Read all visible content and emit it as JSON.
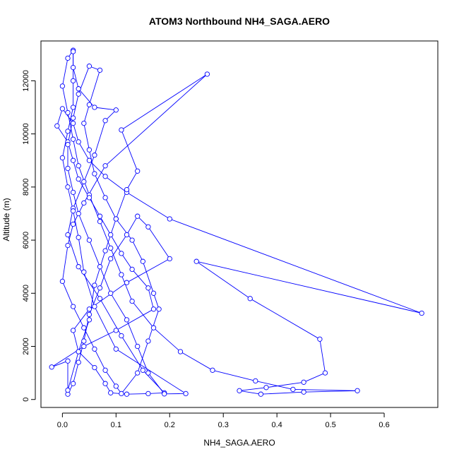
{
  "chart_data": {
    "type": "line",
    "title": "ATOM3 Northbound NH4_SAGA.AERO",
    "xlabel": "NH4_SAGA.AERO",
    "ylabel": "Altitude (m)",
    "xlim": [
      -0.04,
      0.7
    ],
    "ylim": [
      -300,
      13500
    ],
    "x_ticks": [
      0.0,
      0.1,
      0.2,
      0.3,
      0.4,
      0.5,
      0.6
    ],
    "x_tick_labels": [
      "0.0",
      "0.1",
      "0.2",
      "0.3",
      "0.4",
      "0.5",
      "0.6"
    ],
    "y_ticks": [
      0,
      2000,
      4000,
      6000,
      8000,
      10000,
      12000
    ],
    "y_tick_labels": [
      "0",
      "2000",
      "4000",
      "6000",
      "8000",
      "10000",
      "12000"
    ],
    "marker": "open-circle",
    "grid": false,
    "legend": "none",
    "color": "#0000ff",
    "series": [
      {
        "values": [
          [
            0.01,
            200
          ],
          [
            0.02,
            600
          ],
          [
            0.03,
            1400
          ],
          [
            0.04,
            2200
          ],
          [
            0.05,
            3200
          ],
          [
            0.07,
            4200
          ],
          [
            0.09,
            5300
          ],
          [
            0.12,
            6200
          ],
          [
            0.14,
            6900
          ],
          [
            0.16,
            6500
          ],
          [
            0.2,
            5300
          ],
          [
            0.12,
            4400
          ],
          [
            0.05,
            3400
          ],
          [
            0.02,
            2600
          ],
          [
            0.03,
            1800
          ],
          [
            0.06,
            1200
          ],
          [
            0.08,
            600
          ],
          [
            0.09,
            250
          ],
          [
            0.12,
            200
          ],
          [
            0.16,
            220
          ],
          [
            0.19,
            250
          ],
          [
            0.15,
            1100
          ],
          [
            0.11,
            2400
          ],
          [
            0.07,
            3800
          ],
          [
            0.03,
            5000
          ],
          [
            0.01,
            6200
          ],
          [
            0.02,
            7200
          ],
          [
            0.04,
            8200
          ],
          [
            0.06,
            9200
          ],
          [
            0.08,
            10500
          ],
          [
            0.1,
            10900
          ],
          [
            0.06,
            11000
          ],
          [
            0.03,
            11700
          ],
          [
            0.02,
            12500
          ],
          [
            0.02,
            13150
          ],
          [
            0.01,
            12850
          ],
          [
            0.0,
            11800
          ],
          [
            0.01,
            10800
          ],
          [
            0.02,
            9800
          ],
          [
            0.03,
            8800
          ],
          [
            0.05,
            7700
          ],
          [
            0.07,
            6700
          ],
          [
            0.09,
            5700
          ],
          [
            0.11,
            4700
          ],
          [
            0.13,
            3700
          ],
          [
            0.17,
            2700
          ],
          [
            0.22,
            1800
          ],
          [
            0.28,
            1100
          ],
          [
            0.36,
            700
          ],
          [
            0.43,
            380
          ],
          [
            0.55,
            330
          ],
          [
            0.45,
            280
          ],
          [
            0.37,
            200
          ],
          [
            0.33,
            330
          ],
          [
            0.38,
            450
          ],
          [
            0.45,
            650
          ],
          [
            0.49,
            1000
          ],
          [
            0.48,
            2270
          ],
          [
            0.35,
            3800
          ],
          [
            0.25,
            5200
          ],
          [
            0.67,
            3250
          ],
          [
            0.2,
            6800
          ],
          [
            0.12,
            7800
          ],
          [
            0.08,
            8400
          ],
          [
            0.05,
            9000
          ],
          [
            0.03,
            9700
          ],
          [
            0.02,
            10400
          ],
          [
            0.0,
            10950
          ],
          [
            -0.01,
            10300
          ],
          [
            0.01,
            9700
          ],
          [
            0.02,
            9000
          ],
          [
            0.03,
            8300
          ],
          [
            0.05,
            7600
          ],
          [
            0.07,
            6900
          ],
          [
            0.09,
            6200
          ],
          [
            0.11,
            5500
          ],
          [
            0.13,
            4900
          ],
          [
            0.16,
            4200
          ],
          [
            0.17,
            3400
          ],
          [
            0.1,
            2600
          ],
          [
            0.04,
            2000
          ],
          [
            -0.02,
            1220
          ],
          [
            0.01,
            1450
          ],
          [
            0.01,
            350
          ],
          [
            0.03,
            1800
          ],
          [
            0.05,
            3000
          ],
          [
            0.06,
            4300
          ],
          [
            0.08,
            5600
          ],
          [
            0.1,
            6800
          ],
          [
            0.12,
            7900
          ],
          [
            0.14,
            8600
          ],
          [
            0.11,
            10150
          ],
          [
            0.27,
            12250
          ],
          [
            0.08,
            8800
          ],
          [
            0.04,
            7400
          ],
          [
            0.02,
            6600
          ],
          [
            0.01,
            5800
          ],
          [
            0.0,
            4450
          ],
          [
            0.02,
            3500
          ],
          [
            0.04,
            2700
          ],
          [
            0.06,
            1900
          ],
          [
            0.08,
            1100
          ],
          [
            0.1,
            500
          ],
          [
            0.11,
            220
          ],
          [
            0.14,
            1000
          ],
          [
            0.16,
            2200
          ],
          [
            0.18,
            3400
          ],
          [
            0.17,
            4000
          ],
          [
            0.15,
            5200
          ],
          [
            0.13,
            6000
          ],
          [
            0.1,
            6800
          ],
          [
            0.08,
            7600
          ],
          [
            0.06,
            8500
          ],
          [
            0.05,
            9400
          ],
          [
            0.04,
            10400
          ],
          [
            0.05,
            11100
          ],
          [
            0.07,
            12400
          ],
          [
            0.05,
            12550
          ],
          [
            0.03,
            11500
          ],
          [
            0.02,
            10600
          ],
          [
            0.01,
            9600
          ],
          [
            0.01,
            8700
          ],
          [
            0.02,
            7800
          ],
          [
            0.03,
            7000
          ],
          [
            0.05,
            6000
          ],
          [
            0.07,
            5000
          ],
          [
            0.09,
            4000
          ],
          [
            0.12,
            3000
          ],
          [
            0.14,
            2000
          ],
          [
            0.16,
            1000
          ],
          [
            0.19,
            210
          ],
          [
            0.23,
            220
          ],
          [
            0.1,
            1900
          ],
          [
            0.06,
            3500
          ],
          [
            0.04,
            4800
          ],
          [
            0.03,
            6100
          ],
          [
            0.02,
            7100
          ],
          [
            0.01,
            8000
          ],
          [
            0.0,
            9100
          ],
          [
            0.01,
            10100
          ],
          [
            0.02,
            11000
          ],
          [
            0.02,
            12000
          ],
          [
            0.02,
            13100
          ]
        ]
      }
    ]
  }
}
